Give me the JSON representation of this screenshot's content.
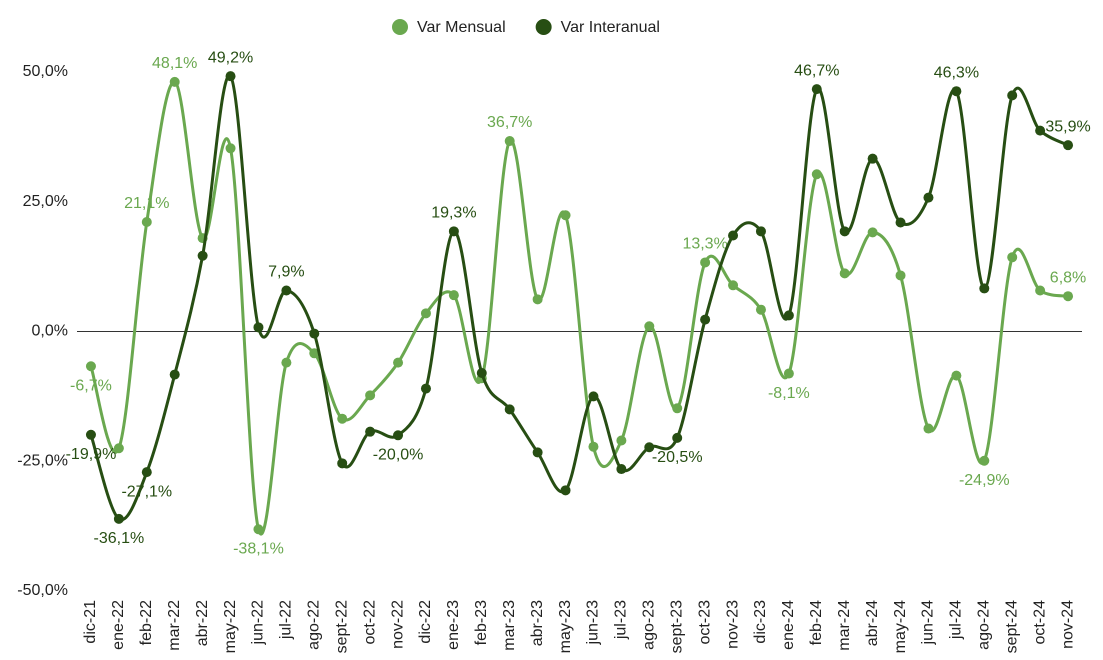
{
  "chart_data": {
    "type": "line",
    "categories": [
      "dic-21",
      "ene-22",
      "feb-22",
      "mar-22",
      "abr-22",
      "may-22",
      "jun-22",
      "jul-22",
      "ago-22",
      "sept-22",
      "oct-22",
      "nov-22",
      "dic-22",
      "ene-23",
      "feb-23",
      "mar-23",
      "abr-23",
      "may-23",
      "jun-23",
      "jul-23",
      "ago-23",
      "sept-23",
      "oct-23",
      "nov-23",
      "dic-23",
      "ene-24",
      "feb-24",
      "mar-24",
      "abr-24",
      "may-24",
      "jun-24",
      "jul-24",
      "ago-24",
      "sept-24",
      "oct-24",
      "nov-24"
    ],
    "series": [
      {
        "name": "Var Mensual",
        "color": "#6aa84f",
        "values": [
          -6.7,
          -22.5,
          21.1,
          48.1,
          18,
          35.3,
          -38.1,
          -6,
          -4.2,
          -16.8,
          -12.3,
          -6,
          3.5,
          7,
          -9,
          36.7,
          6.2,
          22.4,
          -22.2,
          -21,
          1,
          -14.8,
          13.3,
          8.9,
          4.2,
          -8.1,
          30.3,
          11.2,
          19.1,
          10.8,
          -18.7,
          -8.5,
          -24.9,
          14.3,
          7.9,
          6.8
        ],
        "value_labels": [
          "-6,7%",
          null,
          "21,1%",
          "48,1%",
          null,
          null,
          "-38,1%",
          null,
          null,
          null,
          null,
          null,
          null,
          null,
          null,
          "36,7%",
          null,
          null,
          null,
          null,
          null,
          null,
          "13,3%",
          null,
          null,
          "-8,1%",
          null,
          null,
          null,
          null,
          null,
          null,
          "-24,9%",
          null,
          null,
          "6,8%"
        ]
      },
      {
        "name": "Var Interanual",
        "color": "#274e13",
        "values": [
          -19.9,
          -36.1,
          -27.1,
          -8.3,
          14.6,
          49.2,
          0.8,
          7.9,
          -0.4,
          -25.4,
          -19.3,
          -20,
          -11,
          19.3,
          -8,
          -15,
          -23.3,
          -30.6,
          -12.5,
          -26.5,
          -22.3,
          -20.5,
          2.3,
          18.5,
          19.3,
          3.1,
          46.7,
          19.3,
          33.3,
          21,
          25.8,
          46.3,
          8.3,
          45.5,
          38.7,
          35.9
        ],
        "value_labels": [
          "-19,9%",
          "-36,1%",
          "-27,1%",
          null,
          null,
          "49,2%",
          null,
          "7,9%",
          null,
          null,
          null,
          "-20,0%",
          null,
          "19,3%",
          null,
          null,
          null,
          null,
          null,
          null,
          null,
          "-20,5%",
          null,
          null,
          null,
          null,
          "46,7%",
          null,
          null,
          null,
          null,
          "46,3%",
          null,
          null,
          null,
          "35,9%"
        ]
      }
    ],
    "ylim": [
      -50,
      50
    ],
    "yticks": [
      {
        "value": -50,
        "label": "-50,0%"
      },
      {
        "value": -25,
        "label": "-25,0%"
      },
      {
        "value": 0,
        "label": "0,0%"
      },
      {
        "value": 25,
        "label": "25,0%"
      },
      {
        "value": 50,
        "label": "50,0%"
      }
    ],
    "grid": false,
    "legend": "top"
  }
}
